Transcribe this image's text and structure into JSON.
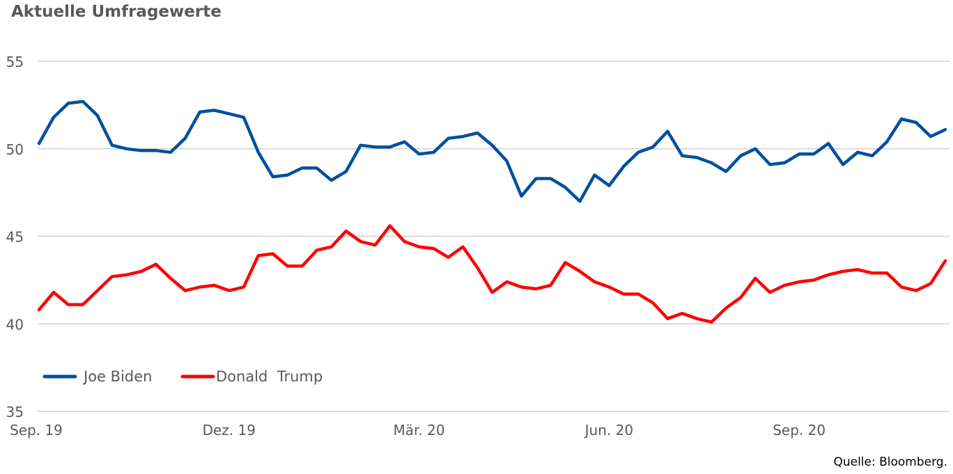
{
  "chart_data": {
    "type": "line",
    "title": "Aktuelle Umfragewerte",
    "xlabel": "",
    "ylabel": "",
    "ylim": [
      35,
      55
    ],
    "yticks": [
      35,
      40,
      45,
      50,
      55
    ],
    "grid": true,
    "legend_position": "bottom-left",
    "x_tick_labels": [
      "Sep. 19",
      "Dez. 19",
      "Mär. 20",
      "Jun. 20",
      "Sep. 20"
    ],
    "x_tick_index": [
      0,
      13,
      26,
      39,
      52
    ],
    "series": [
      {
        "name": "Joe Biden",
        "color": "#004F9F",
        "values": [
          50.3,
          51.8,
          52.6,
          52.7,
          51.9,
          50.2,
          50.0,
          49.9,
          49.9,
          49.8,
          50.6,
          52.1,
          52.2,
          52.0,
          51.8,
          49.8,
          48.4,
          48.5,
          48.9,
          48.9,
          48.2,
          48.7,
          50.2,
          50.1,
          50.1,
          50.4,
          49.7,
          49.8,
          50.6,
          50.7,
          50.9,
          50.2,
          49.3,
          47.3,
          48.3,
          48.3,
          47.8,
          47.0,
          48.5,
          47.9,
          49.0,
          49.8,
          50.1,
          51.0,
          49.6,
          49.5,
          49.2,
          48.7,
          49.6,
          50.0,
          49.1,
          49.2,
          49.7,
          49.7,
          50.3,
          49.1,
          49.8,
          49.6,
          50.4,
          51.7,
          51.5,
          50.7,
          51.1
        ]
      },
      {
        "name": "Donald  Trump",
        "color": "#FF0000",
        "values": [
          40.8,
          41.8,
          41.1,
          41.1,
          41.9,
          42.7,
          42.8,
          43.0,
          43.4,
          42.6,
          41.9,
          42.1,
          42.2,
          41.9,
          42.1,
          43.9,
          44.0,
          43.3,
          43.3,
          44.2,
          44.4,
          45.3,
          44.7,
          44.5,
          45.6,
          44.7,
          44.4,
          44.3,
          43.8,
          44.4,
          43.2,
          41.8,
          42.4,
          42.1,
          42.0,
          42.2,
          43.5,
          43.0,
          42.4,
          42.1,
          41.7,
          41.7,
          41.2,
          40.3,
          40.6,
          40.3,
          40.1,
          40.9,
          41.5,
          42.6,
          41.8,
          42.2,
          42.4,
          42.5,
          42.8,
          43.0,
          43.1,
          42.9,
          42.9,
          42.1,
          41.9,
          42.3,
          43.6
        ]
      }
    ]
  },
  "source": "Quelle: Bloomberg."
}
